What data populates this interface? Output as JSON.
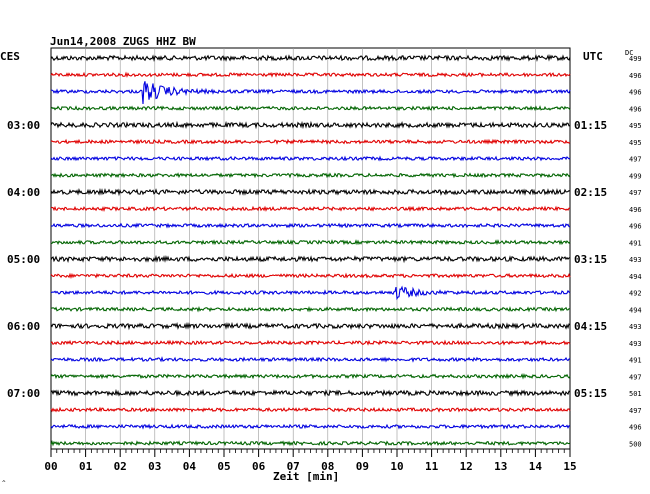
{
  "header": {
    "title": "Jun14,2008   ZUGS HHZ BW",
    "left_tz": "CES",
    "right_tz": "UTC",
    "dc_label": "DC"
  },
  "chart_data": {
    "type": "line",
    "station": "ZUGS",
    "channel": "HHZ",
    "network": "BW",
    "date": "Jun14,2008",
    "xlabel": "Zeit [min]",
    "xlim": [
      0,
      15
    ],
    "x_ticks": [
      "00",
      "01",
      "02",
      "03",
      "04",
      "05",
      "06",
      "07",
      "08",
      "09",
      "10",
      "11",
      "12",
      "13",
      "14",
      "15"
    ],
    "left_labels": [
      {
        "row": 4,
        "text": "03:00"
      },
      {
        "row": 8,
        "text": "04:00"
      },
      {
        "row": 12,
        "text": "05:00"
      },
      {
        "row": 16,
        "text": "06:00"
      },
      {
        "row": 20,
        "text": "07:00"
      }
    ],
    "right_labels": [
      {
        "row": 4,
        "text": "01:15"
      },
      {
        "row": 8,
        "text": "02:15"
      },
      {
        "row": 12,
        "text": "03:15"
      },
      {
        "row": 16,
        "text": "04:15"
      },
      {
        "row": 20,
        "text": "05:15"
      }
    ],
    "row_colors": [
      "#000000",
      "#e00000",
      "#0000e0",
      "#006400"
    ],
    "dc_values": [
      "499",
      "496",
      "496",
      "496",
      "495",
      "495",
      "497",
      "499",
      "497",
      "496",
      "496",
      "491",
      "493",
      "494",
      "492",
      "494",
      "493",
      "493",
      "491",
      "497",
      "501",
      "497",
      "496",
      "500"
    ],
    "events": [
      {
        "row": 2,
        "start_min": 2.65,
        "amplitude": 12,
        "decay_min": 0.55
      },
      {
        "row": 14,
        "start_min": 9.95,
        "amplitude": 7,
        "decay_min": 0.45
      }
    ],
    "grid": true
  },
  "footer": {
    "corner_mark": "^"
  }
}
